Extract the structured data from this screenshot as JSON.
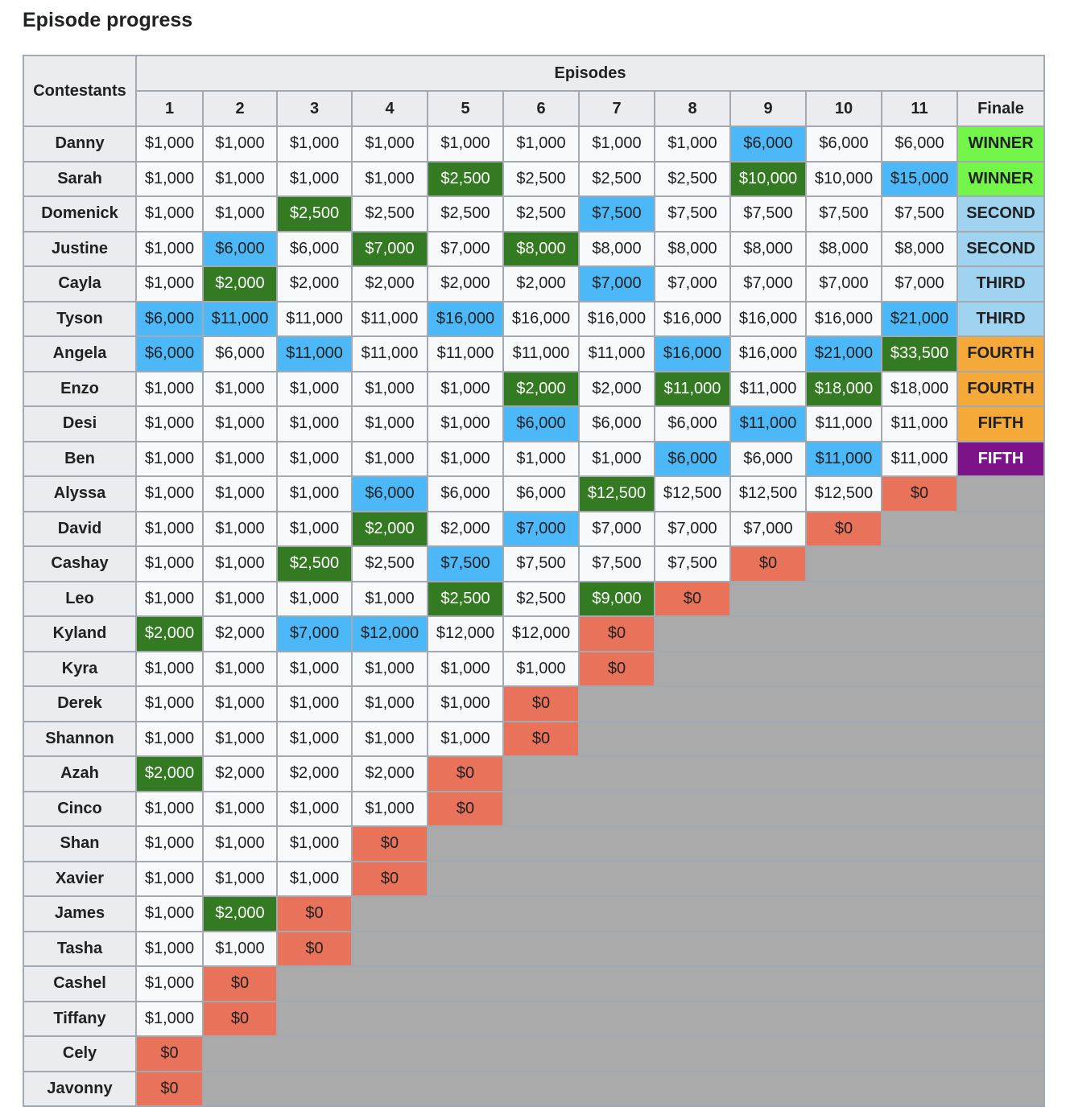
{
  "title": "Episode progress",
  "header": {
    "contestants": "Contestants",
    "episodes": "Episodes",
    "columns": [
      "1",
      "2",
      "3",
      "4",
      "5",
      "6",
      "7",
      "8",
      "9",
      "10",
      "11",
      "Finale"
    ]
  },
  "colors": {
    "immunity_blue": "#4db8f7",
    "reward_green": "#337a23",
    "eliminated_red": "#e8725a",
    "out_gray": "#aaaaaa",
    "winner": "#73f54a",
    "second_third": "#9fd3ef",
    "fourth_fifth": "#f5a938",
    "fifth_purple": "#7c1389"
  },
  "rows": [
    {
      "name": "Danny",
      "cells": [
        [
          "$1,000",
          0
        ],
        [
          "$1,000",
          0
        ],
        [
          "$1,000",
          0
        ],
        [
          "$1,000",
          0
        ],
        [
          "$1,000",
          0
        ],
        [
          "$1,000",
          0
        ],
        [
          "$1,000",
          0
        ],
        [
          "$1,000",
          0
        ],
        [
          "$6,000",
          1
        ],
        [
          "$6,000",
          0
        ],
        [
          "$6,000",
          0
        ],
        [
          "WINNER",
          "f1"
        ]
      ]
    },
    {
      "name": "Sarah",
      "cells": [
        [
          "$1,000",
          0
        ],
        [
          "$1,000",
          0
        ],
        [
          "$1,000",
          0
        ],
        [
          "$1,000",
          0
        ],
        [
          "$2,500",
          2
        ],
        [
          "$2,500",
          0
        ],
        [
          "$2,500",
          0
        ],
        [
          "$2,500",
          0
        ],
        [
          "$10,000",
          2
        ],
        [
          "$10,000",
          0
        ],
        [
          "$15,000",
          1
        ],
        [
          "WINNER",
          "f1"
        ]
      ]
    },
    {
      "name": "Domenick",
      "cells": [
        [
          "$1,000",
          0
        ],
        [
          "$1,000",
          0
        ],
        [
          "$2,500",
          2
        ],
        [
          "$2,500",
          0
        ],
        [
          "$2,500",
          0
        ],
        [
          "$2,500",
          0
        ],
        [
          "$7,500",
          1
        ],
        [
          "$7,500",
          0
        ],
        [
          "$7,500",
          0
        ],
        [
          "$7,500",
          0
        ],
        [
          "$7,500",
          0
        ],
        [
          "SECOND",
          "f2"
        ]
      ]
    },
    {
      "name": "Justine",
      "cells": [
        [
          "$1,000",
          0
        ],
        [
          "$6,000",
          1
        ],
        [
          "$6,000",
          0
        ],
        [
          "$7,000",
          2
        ],
        [
          "$7,000",
          0
        ],
        [
          "$8,000",
          2
        ],
        [
          "$8,000",
          0
        ],
        [
          "$8,000",
          0
        ],
        [
          "$8,000",
          0
        ],
        [
          "$8,000",
          0
        ],
        [
          "$8,000",
          0
        ],
        [
          "SECOND",
          "f2"
        ]
      ]
    },
    {
      "name": "Cayla",
      "cells": [
        [
          "$1,000",
          0
        ],
        [
          "$2,000",
          2
        ],
        [
          "$2,000",
          0
        ],
        [
          "$2,000",
          0
        ],
        [
          "$2,000",
          0
        ],
        [
          "$2,000",
          0
        ],
        [
          "$7,000",
          1
        ],
        [
          "$7,000",
          0
        ],
        [
          "$7,000",
          0
        ],
        [
          "$7,000",
          0
        ],
        [
          "$7,000",
          0
        ],
        [
          "THIRD",
          "f2"
        ]
      ]
    },
    {
      "name": "Tyson",
      "cells": [
        [
          "$6,000",
          1
        ],
        [
          "$11,000",
          1
        ],
        [
          "$11,000",
          0
        ],
        [
          "$11,000",
          0
        ],
        [
          "$16,000",
          1
        ],
        [
          "$16,000",
          0
        ],
        [
          "$16,000",
          0
        ],
        [
          "$16,000",
          0
        ],
        [
          "$16,000",
          0
        ],
        [
          "$16,000",
          0
        ],
        [
          "$21,000",
          1
        ],
        [
          "THIRD",
          "f2"
        ]
      ]
    },
    {
      "name": "Angela",
      "cells": [
        [
          "$6,000",
          1
        ],
        [
          "$6,000",
          0
        ],
        [
          "$11,000",
          1
        ],
        [
          "$11,000",
          0
        ],
        [
          "$11,000",
          0
        ],
        [
          "$11,000",
          0
        ],
        [
          "$11,000",
          0
        ],
        [
          "$16,000",
          1
        ],
        [
          "$16,000",
          0
        ],
        [
          "$21,000",
          1
        ],
        [
          "$33,500",
          2
        ],
        [
          "FOURTH",
          "f3"
        ]
      ]
    },
    {
      "name": "Enzo",
      "cells": [
        [
          "$1,000",
          0
        ],
        [
          "$1,000",
          0
        ],
        [
          "$1,000",
          0
        ],
        [
          "$1,000",
          0
        ],
        [
          "$1,000",
          0
        ],
        [
          "$2,000",
          2
        ],
        [
          "$2,000",
          0
        ],
        [
          "$11,000",
          2
        ],
        [
          "$11,000",
          0
        ],
        [
          "$18,000",
          2
        ],
        [
          "$18,000",
          0
        ],
        [
          "FOURTH",
          "f3"
        ]
      ]
    },
    {
      "name": "Desi",
      "cells": [
        [
          "$1,000",
          0
        ],
        [
          "$1,000",
          0
        ],
        [
          "$1,000",
          0
        ],
        [
          "$1,000",
          0
        ],
        [
          "$1,000",
          0
        ],
        [
          "$6,000",
          1
        ],
        [
          "$6,000",
          0
        ],
        [
          "$6,000",
          0
        ],
        [
          "$11,000",
          1
        ],
        [
          "$11,000",
          0
        ],
        [
          "$11,000",
          0
        ],
        [
          "FIFTH",
          "f3"
        ]
      ]
    },
    {
      "name": "Ben",
      "cells": [
        [
          "$1,000",
          0
        ],
        [
          "$1,000",
          0
        ],
        [
          "$1,000",
          0
        ],
        [
          "$1,000",
          0
        ],
        [
          "$1,000",
          0
        ],
        [
          "$1,000",
          0
        ],
        [
          "$1,000",
          0
        ],
        [
          "$6,000",
          1
        ],
        [
          "$6,000",
          0
        ],
        [
          "$11,000",
          1
        ],
        [
          "$11,000",
          0
        ],
        [
          "FIFTH",
          "f4"
        ]
      ]
    },
    {
      "name": "Alyssa",
      "cells": [
        [
          "$1,000",
          0
        ],
        [
          "$1,000",
          0
        ],
        [
          "$1,000",
          0
        ],
        [
          "$6,000",
          1
        ],
        [
          "$6,000",
          0
        ],
        [
          "$6,000",
          0
        ],
        [
          "$12,500",
          2
        ],
        [
          "$12,500",
          0
        ],
        [
          "$12,500",
          0
        ],
        [
          "$12,500",
          0
        ],
        [
          "$0",
          3
        ]
      ],
      "gray": 1
    },
    {
      "name": "David",
      "cells": [
        [
          "$1,000",
          0
        ],
        [
          "$1,000",
          0
        ],
        [
          "$1,000",
          0
        ],
        [
          "$2,000",
          2
        ],
        [
          "$2,000",
          0
        ],
        [
          "$7,000",
          1
        ],
        [
          "$7,000",
          0
        ],
        [
          "$7,000",
          0
        ],
        [
          "$7,000",
          0
        ],
        [
          "$0",
          3
        ]
      ],
      "gray": 2
    },
    {
      "name": "Cashay",
      "cells": [
        [
          "$1,000",
          0
        ],
        [
          "$1,000",
          0
        ],
        [
          "$2,500",
          2
        ],
        [
          "$2,500",
          0
        ],
        [
          "$7,500",
          1
        ],
        [
          "$7,500",
          0
        ],
        [
          "$7,500",
          0
        ],
        [
          "$7,500",
          0
        ],
        [
          "$0",
          3
        ]
      ],
      "gray": 3
    },
    {
      "name": "Leo",
      "cells": [
        [
          "$1,000",
          0
        ],
        [
          "$1,000",
          0
        ],
        [
          "$1,000",
          0
        ],
        [
          "$1,000",
          0
        ],
        [
          "$2,500",
          2
        ],
        [
          "$2,500",
          0
        ],
        [
          "$9,000",
          2
        ],
        [
          "$0",
          3
        ]
      ],
      "gray": 4
    },
    {
      "name": "Kyland",
      "cells": [
        [
          "$2,000",
          2
        ],
        [
          "$2,000",
          0
        ],
        [
          "$7,000",
          1
        ],
        [
          "$12,000",
          1
        ],
        [
          "$12,000",
          0
        ],
        [
          "$12,000",
          0
        ],
        [
          "$0",
          3
        ]
      ],
      "gray": 5
    },
    {
      "name": "Kyra",
      "cells": [
        [
          "$1,000",
          0
        ],
        [
          "$1,000",
          0
        ],
        [
          "$1,000",
          0
        ],
        [
          "$1,000",
          0
        ],
        [
          "$1,000",
          0
        ],
        [
          "$1,000",
          0
        ],
        [
          "$0",
          3
        ]
      ],
      "gray": 5
    },
    {
      "name": "Derek",
      "cells": [
        [
          "$1,000",
          0
        ],
        [
          "$1,000",
          0
        ],
        [
          "$1,000",
          0
        ],
        [
          "$1,000",
          0
        ],
        [
          "$1,000",
          0
        ],
        [
          "$0",
          3
        ]
      ],
      "gray": 6
    },
    {
      "name": "Shannon",
      "cells": [
        [
          "$1,000",
          0
        ],
        [
          "$1,000",
          0
        ],
        [
          "$1,000",
          0
        ],
        [
          "$1,000",
          0
        ],
        [
          "$1,000",
          0
        ],
        [
          "$0",
          3
        ]
      ],
      "gray": 6
    },
    {
      "name": "Azah",
      "cells": [
        [
          "$2,000",
          2
        ],
        [
          "$2,000",
          0
        ],
        [
          "$2,000",
          0
        ],
        [
          "$2,000",
          0
        ],
        [
          "$0",
          3
        ]
      ],
      "gray": 7
    },
    {
      "name": "Cinco",
      "cells": [
        [
          "$1,000",
          0
        ],
        [
          "$1,000",
          0
        ],
        [
          "$1,000",
          0
        ],
        [
          "$1,000",
          0
        ],
        [
          "$0",
          3
        ]
      ],
      "gray": 7
    },
    {
      "name": "Shan",
      "cells": [
        [
          "$1,000",
          0
        ],
        [
          "$1,000",
          0
        ],
        [
          "$1,000",
          0
        ],
        [
          "$0",
          3
        ]
      ],
      "gray": 8
    },
    {
      "name": "Xavier",
      "cells": [
        [
          "$1,000",
          0
        ],
        [
          "$1,000",
          0
        ],
        [
          "$1,000",
          0
        ],
        [
          "$0",
          3
        ]
      ],
      "gray": 8
    },
    {
      "name": "James",
      "cells": [
        [
          "$1,000",
          0
        ],
        [
          "$2,000",
          2
        ],
        [
          "$0",
          3
        ]
      ],
      "gray": 9
    },
    {
      "name": "Tasha",
      "cells": [
        [
          "$1,000",
          0
        ],
        [
          "$1,000",
          0
        ],
        [
          "$0",
          3
        ]
      ],
      "gray": 9
    },
    {
      "name": "Cashel",
      "cells": [
        [
          "$1,000",
          0
        ],
        [
          "$0",
          3
        ]
      ],
      "gray": 10
    },
    {
      "name": "Tiffany",
      "cells": [
        [
          "$1,000",
          0
        ],
        [
          "$0",
          3
        ]
      ],
      "gray": 10
    },
    {
      "name": "Cely",
      "cells": [
        [
          "$0",
          3
        ]
      ],
      "gray": 11
    },
    {
      "name": "Javonny",
      "cells": [
        [
          "$0",
          3
        ]
      ],
      "gray": 11
    }
  ]
}
